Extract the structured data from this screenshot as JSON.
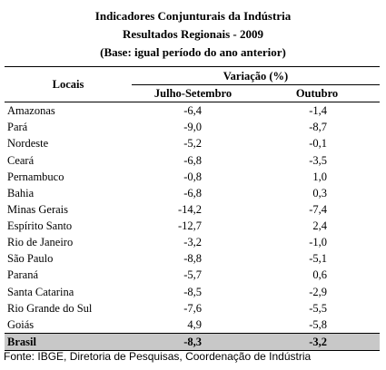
{
  "header": {
    "title": "Indicadores Conjunturais da Indústria",
    "subtitle": "Resultados Regionais - 2009",
    "note": "(Base: igual período do ano anterior)"
  },
  "table": {
    "columns": {
      "locais": "Locais",
      "group": "Variação (%)",
      "col1": "Julho-Setembro",
      "col2": "Outubro"
    },
    "rows": [
      [
        "Amazonas",
        "-6,4",
        "-1,4"
      ],
      [
        "Pará",
        "-9,0",
        "-8,7"
      ],
      [
        "Nordeste",
        "-5,2",
        "-0,1"
      ],
      [
        "Ceará",
        "-6,8",
        "-3,5"
      ],
      [
        "Pernambuco",
        "-0,8",
        "1,0"
      ],
      [
        "Bahia",
        "-6,8",
        "0,3"
      ],
      [
        "Minas Gerais",
        "-14,2",
        "-7,4"
      ],
      [
        "Espírito Santo",
        "-12,7",
        "2,4"
      ],
      [
        "Rio de Janeiro",
        "-3,2",
        "-1,0"
      ],
      [
        "São Paulo",
        "-8,8",
        "-5,1"
      ],
      [
        "Paraná",
        "-5,7",
        "0,6"
      ],
      [
        "Santa Catarina",
        "-8,5",
        "-2,9"
      ],
      [
        "Rio Grande do Sul",
        "-7,6",
        "-5,5"
      ],
      [
        "Goiás",
        "4,9",
        "-5,8"
      ]
    ],
    "total": [
      "Brasil",
      "-8,3",
      "-3,2"
    ]
  },
  "footer": {
    "source": "Fonte: IBGE, Diretoria de Pesquisas, Coordenação de Indústria"
  }
}
